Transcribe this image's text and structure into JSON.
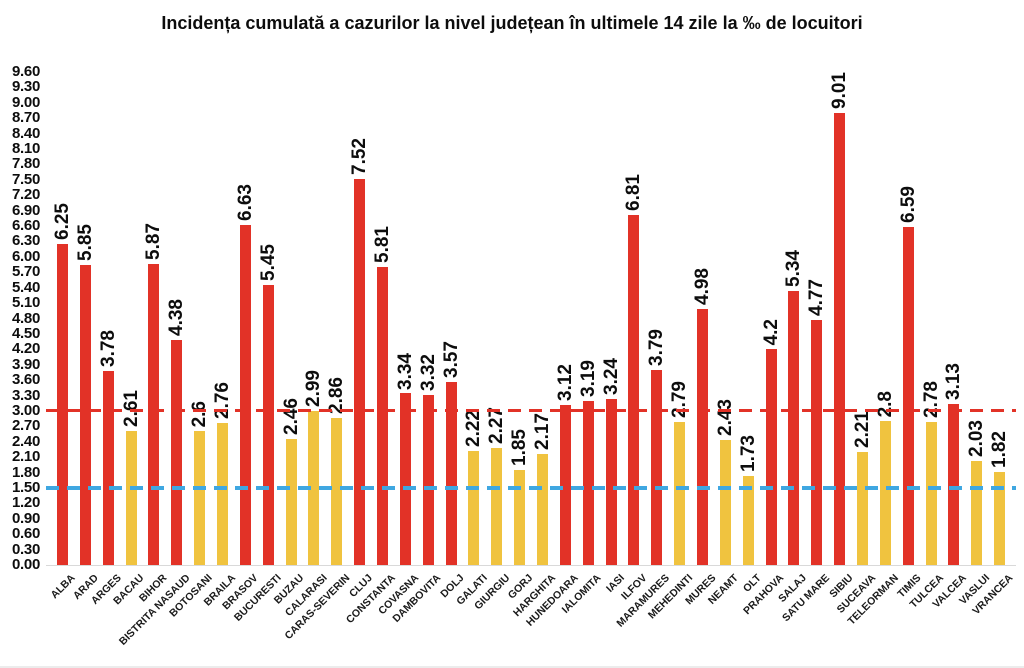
{
  "chart_data": {
    "type": "bar",
    "title": "Incidența cumulată a cazurilor la nivel județean în ultimele 14 zile la ‰ de locuitori",
    "xlabel": "",
    "ylabel": "",
    "categories": [
      "ALBA",
      "ARAD",
      "ARGES",
      "BACAU",
      "BIHOR",
      "BISTRITA NASAUD",
      "BOTOSANI",
      "BRAILA",
      "BRASOV",
      "BUCURESTI",
      "BUZAU",
      "CALARASI",
      "CARAS-SEVERIN",
      "CLUJ",
      "CONSTANTA",
      "COVASNA",
      "DAMBOVITA",
      "DOLJ",
      "GALATI",
      "GIURGIU",
      "GORJ",
      "HARGHITA",
      "HUNEDOARA",
      "IALOMITA",
      "IASI",
      "ILFOV",
      "MARAMURES",
      "MEHEDINTI",
      "MURES",
      "NEAMT",
      "OLT",
      "PRAHOVA",
      "SALAJ",
      "SATU MARE",
      "SIBIU",
      "SUCEAVA",
      "TELEORMAN",
      "TIMIS",
      "TULCEA",
      "VALCEA",
      "VASLUI",
      "VRANCEA"
    ],
    "values": [
      6.25,
      5.85,
      3.78,
      2.61,
      5.87,
      4.38,
      2.6,
      2.76,
      6.63,
      5.45,
      2.46,
      2.99,
      2.86,
      7.52,
      5.81,
      3.34,
      3.32,
      3.57,
      2.22,
      2.27,
      1.85,
      2.17,
      3.12,
      3.19,
      3.24,
      6.81,
      3.79,
      2.79,
      4.98,
      2.43,
      1.73,
      4.2,
      5.34,
      4.77,
      9.01,
      2.21,
      2.8,
      6.59,
      2.78,
      3.13,
      2.03,
      1.82
    ],
    "ylim": [
      0,
      9.6
    ],
    "ytick_step": 0.3,
    "ytick_decimals": 2,
    "grid": false,
    "legend": false,
    "color_threshold": 3.0,
    "bar_color_above": "#e23227",
    "bar_color_below": "#f0c33f",
    "reference_lines": [
      {
        "name": "red-dashed-threshold",
        "value": 3.0,
        "color": "#e23227",
        "thickness": 3
      },
      {
        "name": "blue-dashed-threshold",
        "value": 1.5,
        "color": "#3fa7e1",
        "thickness": 4
      }
    ]
  }
}
